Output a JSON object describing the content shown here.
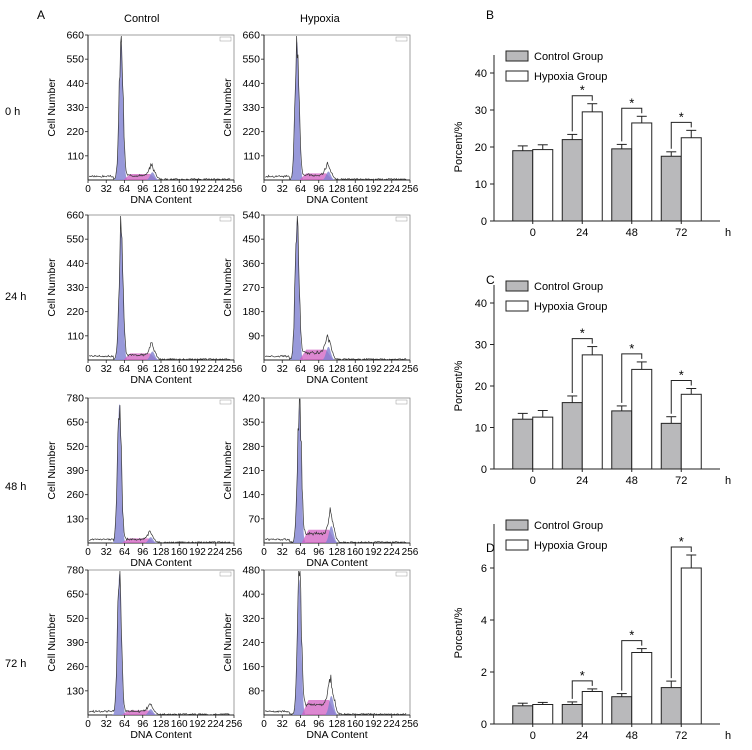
{
  "labels": {
    "panel_a": "A",
    "panel_b": "B",
    "panel_c": "C",
    "panel_d": "D",
    "col_control": "Control",
    "col_hypoxia": "Hypoxia",
    "rows": [
      "0 h",
      "24 h",
      "48 h",
      "72 h"
    ]
  },
  "chart_data": [
    {
      "type": "area",
      "panel": "A",
      "description": "DNA content histograms (flow cytometry)",
      "xlabel": "DNA Content",
      "ylabel": "Cell Number",
      "x_ticks": [
        0,
        32,
        64,
        96,
        128,
        160,
        192,
        224,
        256
      ],
      "histograms": [
        {
          "row": "0 h",
          "group": "Control",
          "y_ticks": [
            110,
            220,
            330,
            440,
            550,
            660
          ],
          "ymax": 660,
          "g1_peak": 620,
          "g2_peak": 50,
          "g1_x": 58,
          "g2_x": 113
        },
        {
          "row": "0 h",
          "group": "Hypoxia",
          "y_ticks": [
            110,
            220,
            330,
            440,
            550,
            660
          ],
          "ymax": 660,
          "g1_peak": 630,
          "g2_peak": 55,
          "g1_x": 58,
          "g2_x": 113
        },
        {
          "row": "24 h",
          "group": "Control",
          "y_ticks": [
            110,
            220,
            330,
            440,
            550,
            660
          ],
          "ymax": 660,
          "g1_peak": 600,
          "g2_peak": 55,
          "g1_x": 58,
          "g2_x": 113
        },
        {
          "row": "24 h",
          "group": "Hypoxia",
          "y_ticks": [
            90,
            180,
            270,
            360,
            450,
            540
          ],
          "ymax": 540,
          "g1_peak": 520,
          "g2_peak": 70,
          "g1_x": 58,
          "g2_x": 113
        },
        {
          "row": "48 h",
          "group": "Control",
          "y_ticks": [
            130,
            260,
            390,
            520,
            650,
            780
          ],
          "ymax": 780,
          "g1_peak": 750,
          "g2_peak": 45,
          "g1_x": 55,
          "g2_x": 110
        },
        {
          "row": "48 h",
          "group": "Hypoxia",
          "y_ticks": [
            70,
            140,
            210,
            280,
            350,
            420
          ],
          "ymax": 420,
          "g1_peak": 400,
          "g2_peak": 70,
          "g1_x": 62,
          "g2_x": 118
        },
        {
          "row": "72 h",
          "group": "Control",
          "y_ticks": [
            130,
            260,
            390,
            520,
            650,
            780
          ],
          "ymax": 780,
          "g1_peak": 760,
          "g2_peak": 45,
          "g1_x": 55,
          "g2_x": 110
        },
        {
          "row": "72 h",
          "group": "Hypoxia",
          "y_ticks": [
            80,
            160,
            240,
            320,
            400,
            480
          ],
          "ymax": 480,
          "g1_peak": 450,
          "g2_peak": 90,
          "g1_x": 62,
          "g2_x": 118
        }
      ]
    },
    {
      "type": "bar",
      "panel": "B",
      "categories": [
        "0",
        "24",
        "48",
        "72"
      ],
      "x_unit": "h",
      "ylabel": "Porcent/%",
      "ylim": [
        0,
        40
      ],
      "y_ticks": [
        0,
        10,
        20,
        30,
        40
      ],
      "series": [
        {
          "name": "Control Group",
          "values": [
            19,
            22,
            19.5,
            17.5
          ],
          "errors": [
            1.3,
            1.4,
            1.2,
            1.2
          ],
          "color": "#b9b9bb"
        },
        {
          "name": "Hypoxia Group",
          "values": [
            19.3,
            29.5,
            26.5,
            22.5
          ],
          "errors": [
            1.3,
            2.2,
            1.8,
            2.0
          ],
          "color": "#ffffff"
        }
      ],
      "significance": [
        "",
        "*",
        "*",
        "*"
      ]
    },
    {
      "type": "bar",
      "panel": "C",
      "categories": [
        "0",
        "24",
        "48",
        "72"
      ],
      "x_unit": "h",
      "ylabel": "Porcent/%",
      "ylim": [
        0,
        40
      ],
      "y_ticks": [
        0,
        10,
        20,
        30,
        40
      ],
      "series": [
        {
          "name": "Control Group",
          "values": [
            12,
            16,
            14,
            11
          ],
          "errors": [
            1.4,
            1.6,
            1.2,
            1.6
          ],
          "color": "#b9b9bb"
        },
        {
          "name": "Hypoxia Group",
          "values": [
            12.5,
            27.5,
            24,
            18
          ],
          "errors": [
            1.6,
            2.0,
            1.8,
            1.4
          ],
          "color": "#ffffff"
        }
      ],
      "significance": [
        "",
        "*",
        "*",
        "*"
      ]
    },
    {
      "type": "bar",
      "panel": "D",
      "categories": [
        "0",
        "24",
        "48",
        "72"
      ],
      "x_unit": "h",
      "ylabel": "Porcent/%",
      "ylim": [
        0,
        7
      ],
      "y_ticks": [
        0,
        2,
        4,
        6
      ],
      "series": [
        {
          "name": "Control Group",
          "values": [
            0.7,
            0.75,
            1.05,
            1.4
          ],
          "errors": [
            0.1,
            0.1,
            0.12,
            0.25
          ],
          "color": "#b9b9bb"
        },
        {
          "name": "Hypoxia Group",
          "values": [
            0.75,
            1.25,
            2.75,
            6.0
          ],
          "errors": [
            0.08,
            0.1,
            0.15,
            0.5
          ],
          "color": "#ffffff"
        }
      ],
      "significance": [
        "",
        "*",
        "*",
        "*"
      ]
    }
  ]
}
